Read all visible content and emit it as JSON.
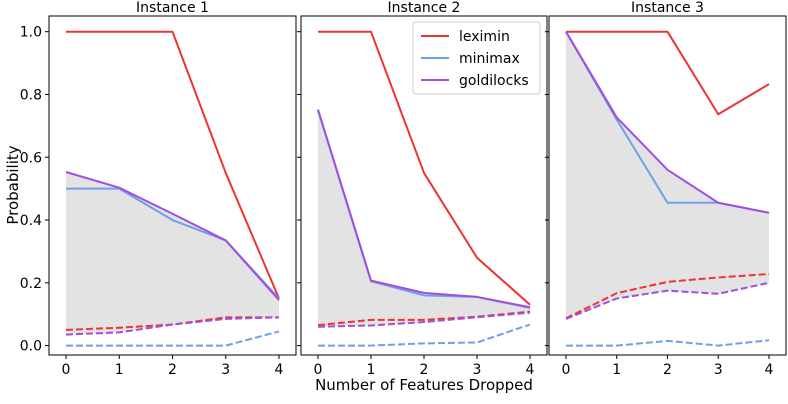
{
  "figure": {
    "ylabel": "Probability",
    "xlabel": "Number of Features Dropped"
  },
  "legend": {
    "placement": "top-right of Instance 2",
    "entries": [
      {
        "label": "leximin",
        "color": "#ee3333"
      },
      {
        "label": "minimax",
        "color": "#6f9fe6"
      },
      {
        "label": "goldilocks",
        "color": "#a24ee0"
      }
    ]
  },
  "colors": {
    "leximin": "#ee3333",
    "minimax": "#6f9fe6",
    "goldilocks": "#a24ee0",
    "band": "#e3e3e3"
  },
  "chart_data": [
    {
      "type": "line",
      "title": "Instance 1",
      "x": [
        0,
        1,
        2,
        3,
        4
      ],
      "xticks": [
        "0",
        "1",
        "2",
        "3",
        "4"
      ],
      "yticks": [
        "0.0",
        "0.2",
        "0.4",
        "0.6",
        "0.8",
        "1.0"
      ],
      "ylim": [
        -0.03,
        1.05
      ],
      "grid": false,
      "shaded_band": "between goldilocks solid and goldilocks dashed",
      "series": [
        {
          "name": "leximin",
          "style": "solid",
          "values": [
            1.0,
            1.0,
            1.0,
            0.55,
            0.15
          ]
        },
        {
          "name": "minimax",
          "style": "solid",
          "values": [
            0.5,
            0.5,
            0.4,
            0.335,
            0.15
          ]
        },
        {
          "name": "goldilocks",
          "style": "solid",
          "values": [
            0.553,
            0.503,
            0.42,
            0.335,
            0.145
          ]
        },
        {
          "name": "leximin",
          "style": "dashed",
          "values": [
            0.05,
            0.057,
            0.067,
            0.09,
            0.09
          ]
        },
        {
          "name": "minimax",
          "style": "dashed",
          "values": [
            0.0,
            0.0,
            0.0,
            0.0,
            0.045
          ]
        },
        {
          "name": "goldilocks",
          "style": "dashed",
          "values": [
            0.035,
            0.042,
            0.067,
            0.085,
            0.09
          ]
        }
      ]
    },
    {
      "type": "line",
      "title": "Instance 2",
      "x": [
        0,
        1,
        2,
        3,
        4
      ],
      "xticks": [
        "0",
        "1",
        "2",
        "3",
        "4"
      ],
      "yticks": [
        "0.0",
        "0.2",
        "0.4",
        "0.6",
        "0.8",
        "1.0"
      ],
      "ylim": [
        -0.03,
        1.05
      ],
      "grid": false,
      "shaded_band": "between goldilocks solid and goldilocks dashed",
      "series": [
        {
          "name": "leximin",
          "style": "solid",
          "values": [
            1.0,
            1.0,
            0.55,
            0.28,
            0.13
          ]
        },
        {
          "name": "minimax",
          "style": "solid",
          "values": [
            0.75,
            0.205,
            0.16,
            0.155,
            0.12
          ]
        },
        {
          "name": "goldilocks",
          "style": "solid",
          "values": [
            0.752,
            0.207,
            0.168,
            0.155,
            0.122
          ]
        },
        {
          "name": "leximin",
          "style": "dashed",
          "values": [
            0.065,
            0.082,
            0.082,
            0.092,
            0.108
          ]
        },
        {
          "name": "minimax",
          "style": "dashed",
          "values": [
            0.0,
            0.0,
            0.007,
            0.01,
            0.067
          ]
        },
        {
          "name": "goldilocks",
          "style": "dashed",
          "values": [
            0.06,
            0.064,
            0.075,
            0.09,
            0.105
          ]
        }
      ]
    },
    {
      "type": "line",
      "title": "Instance 3",
      "x": [
        0,
        1,
        2,
        3,
        4
      ],
      "xticks": [
        "0",
        "1",
        "2",
        "3",
        "4"
      ],
      "yticks": [
        "0.0",
        "0.2",
        "0.4",
        "0.6",
        "0.8",
        "1.0"
      ],
      "ylim": [
        -0.03,
        1.05
      ],
      "grid": false,
      "shaded_band": "between goldilocks solid and goldilocks dashed",
      "series": [
        {
          "name": "leximin",
          "style": "solid",
          "values": [
            1.0,
            1.0,
            1.0,
            0.737,
            0.833
          ]
        },
        {
          "name": "minimax",
          "style": "solid",
          "values": [
            1.0,
            0.72,
            0.455,
            0.455,
            0.423
          ]
        },
        {
          "name": "goldilocks",
          "style": "solid",
          "values": [
            1.0,
            0.727,
            0.56,
            0.455,
            0.423
          ]
        },
        {
          "name": "leximin",
          "style": "dashed",
          "values": [
            0.087,
            0.167,
            0.203,
            0.217,
            0.228
          ]
        },
        {
          "name": "minimax",
          "style": "dashed",
          "values": [
            0.0,
            0.0,
            0.015,
            0.0,
            0.017
          ]
        },
        {
          "name": "goldilocks",
          "style": "dashed",
          "values": [
            0.085,
            0.15,
            0.175,
            0.165,
            0.2
          ]
        }
      ]
    }
  ]
}
